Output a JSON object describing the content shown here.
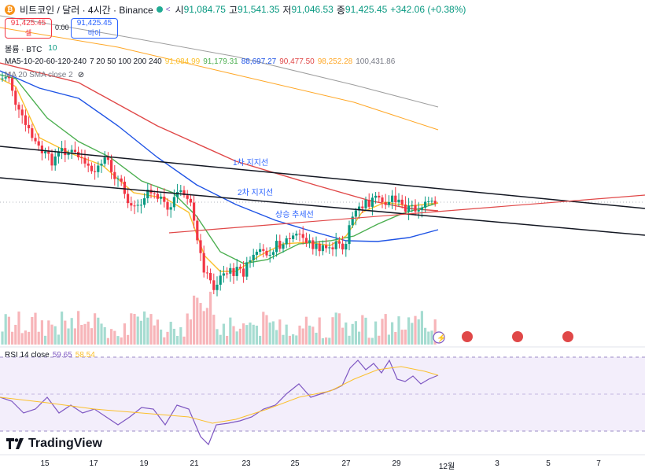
{
  "header": {
    "symbol": "비트코인 / 달러 · 4시간 · Binance",
    "open_label": "시",
    "open": "91,084.75",
    "high_label": "고",
    "high": "91,541.35",
    "low_label": "저",
    "low": "91,046.53",
    "close_label": "종",
    "close": "91,425.45",
    "change": "+342.06 (+0.38%)"
  },
  "trade": {
    "sell_price": "91,425.45",
    "sell_label": "셀",
    "spread": "0.00",
    "buy_price": "91,425.45",
    "buy_label": "바이"
  },
  "indicators": {
    "volume_label": "볼륨 · BTC",
    "volume_value": "10",
    "ma_label": "MA5-10-20-60-120-240",
    "ma_params": "7 20 50 100 200 240",
    "ma_values": [
      "91,084.99",
      "91,179.31",
      "88,697.27",
      "90,477.50",
      "98,252.28",
      "100,431.86"
    ],
    "sma_label": "MA 20 SMA close 2",
    "rsi_label": "RSI 14 close",
    "rsi_value": "59.65",
    "rsi_ma": "58.54"
  },
  "annotations": {
    "support1": "1차 지지선",
    "support2": "2차 지지선",
    "uptrend": "상승 추세선"
  },
  "x_axis": [
    "15",
    "17",
    "19",
    "21",
    "23",
    "25",
    "27",
    "29",
    "12월",
    "3",
    "5",
    "7"
  ],
  "brand": "TradingView",
  "colors": {
    "up": "#089981",
    "down": "#f23645",
    "ma7": "#fbc02d",
    "ma20": "#4caf50",
    "ma50": "#1e53e5",
    "ma100": "#e04848",
    "ma200": "#ffa726",
    "ma240": "#9e9e9e",
    "rsi": "#7e57c2",
    "rsi_ma": "#fbc02d"
  },
  "chart_data": {
    "type": "candlestick",
    "period": "4h",
    "x_labels": [
      "15",
      "17",
      "19",
      "21",
      "23",
      "25",
      "27",
      "29",
      "12월",
      "3",
      "5",
      "7"
    ],
    "last_close": 91425.45,
    "ma_latest": {
      "MA7": 91084.99,
      "MA20": 91179.31,
      "MA50": 88697.27,
      "MA100": 90477.5,
      "MA200": 98252.28,
      "MA240": 100431.86
    },
    "rsi": {
      "value": 59.65,
      "ma": 58.54,
      "bands": [
        30,
        50,
        70
      ]
    }
  }
}
